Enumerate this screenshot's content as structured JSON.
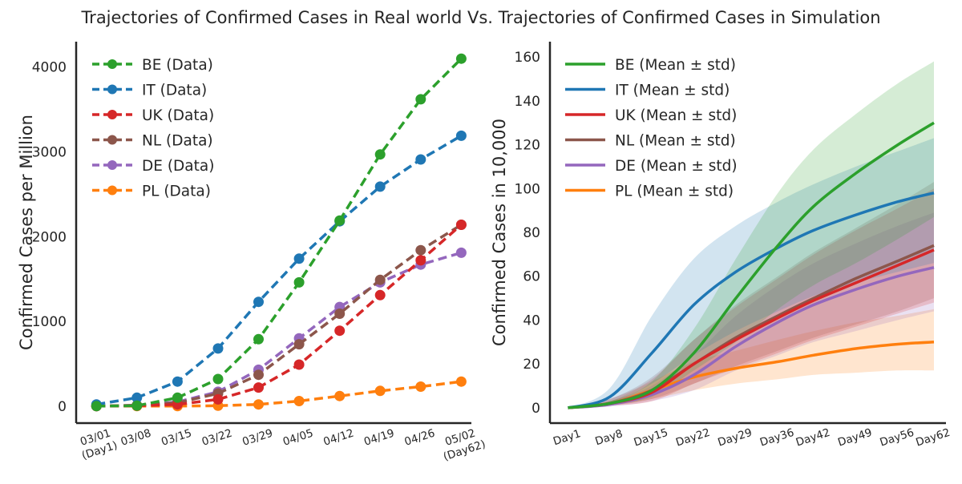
{
  "title": "Trajectories of Confirmed Cases in Real world  Vs. Trajectories of Confirmed Cases in Simulation",
  "colors": {
    "BE": "#2ca02c",
    "IT": "#1f77b4",
    "UK": "#d62728",
    "NL": "#8c564b",
    "DE": "#9467bd",
    "PL": "#ff7f0e"
  },
  "chart_data": [
    {
      "type": "line",
      "ylabel": "Confirmed Cases per Million",
      "xlabel": "",
      "ylim": [
        -200,
        4300
      ],
      "xlim": [
        -0.5,
        9.25
      ],
      "x_ticks": [
        {
          "label": "03/01\n(Day1)",
          "x": 0
        },
        {
          "label": "03/08",
          "x": 1
        },
        {
          "label": "03/15",
          "x": 2
        },
        {
          "label": "03/22",
          "x": 3
        },
        {
          "label": "03/29",
          "x": 4
        },
        {
          "label": "04/05",
          "x": 5
        },
        {
          "label": "04/12",
          "x": 6
        },
        {
          "label": "04/19",
          "x": 7
        },
        {
          "label": "04/26",
          "x": 8
        },
        {
          "label": "05/02\n(Day62)",
          "x": 9
        }
      ],
      "y_ticks": [
        0,
        1000,
        2000,
        3000,
        4000
      ],
      "categories": [
        "03/01",
        "03/08",
        "03/15",
        "03/22",
        "03/29",
        "04/05",
        "04/12",
        "04/19",
        "04/26",
        "05/02"
      ],
      "legend": "upper left",
      "series": [
        {
          "name": "BE (Data)",
          "key": "BE",
          "values": [
            0,
            5,
            100,
            320,
            790,
            1460,
            2190,
            2970,
            3620,
            4100
          ]
        },
        {
          "name": "IT (Data)",
          "key": "IT",
          "values": [
            20,
            100,
            290,
            680,
            1230,
            1740,
            2180,
            2590,
            2910,
            3190
          ]
        },
        {
          "name": "UK (Data)",
          "key": "UK",
          "values": [
            0,
            5,
            20,
            80,
            220,
            490,
            890,
            1310,
            1720,
            2140
          ]
        },
        {
          "name": "NL (Data)",
          "key": "NL",
          "values": [
            0,
            10,
            40,
            150,
            370,
            730,
            1090,
            1490,
            1840,
            2140
          ]
        },
        {
          "name": "DE (Data)",
          "key": "DE",
          "values": [
            0,
            10,
            50,
            170,
            430,
            800,
            1170,
            1460,
            1670,
            1810
          ]
        },
        {
          "name": "PL (Data)",
          "key": "PL",
          "values": [
            0,
            0,
            0,
            5,
            20,
            60,
            120,
            180,
            230,
            290
          ]
        }
      ]
    },
    {
      "type": "area",
      "ylabel": "Confirmed Cases in 10,000",
      "xlabel": "",
      "ylim": [
        -7,
        167
      ],
      "xlim": [
        -2,
        64
      ],
      "x_ticks": [
        {
          "label": "Day1",
          "x": 1
        },
        {
          "label": "Day8",
          "x": 8
        },
        {
          "label": "Day15",
          "x": 15
        },
        {
          "label": "Day22",
          "x": 22
        },
        {
          "label": "Day29",
          "x": 29
        },
        {
          "label": "Day36",
          "x": 36
        },
        {
          "label": "Day42",
          "x": 42
        },
        {
          "label": "Day49",
          "x": 49
        },
        {
          "label": "Day56",
          "x": 56
        },
        {
          "label": "Day62",
          "x": 62
        }
      ],
      "y_ticks": [
        0,
        20,
        40,
        60,
        80,
        100,
        120,
        140,
        160
      ],
      "x": [
        1,
        8,
        15,
        22,
        29,
        36,
        42,
        49,
        56,
        62
      ],
      "legend": "upper left",
      "series": [
        {
          "name": "BE (Mean ± std)",
          "key": "BE",
          "mean": [
            0,
            2,
            8,
            25,
            50,
            74,
            92,
            107,
            120,
            130
          ],
          "lower": [
            0,
            1.5,
            5,
            17,
            30,
            45,
            56,
            66,
            77,
            87
          ],
          "upper": [
            0,
            3,
            12,
            36,
            68,
            98,
            118,
            134,
            148,
            158
          ]
        },
        {
          "name": "IT (Mean ± std)",
          "key": "IT",
          "mean": [
            0,
            5,
            25,
            47,
            62,
            73,
            81,
            88,
            94,
            98
          ],
          "lower": [
            0,
            2,
            11,
            24,
            35,
            44,
            51,
            57,
            62,
            66
          ],
          "upper": [
            0,
            9,
            42,
            68,
            83,
            94,
            102,
            110,
            117,
            123
          ]
        },
        {
          "name": "UK (Mean ± std)",
          "key": "UK",
          "mean": [
            0,
            2,
            7,
            20,
            31,
            41,
            49,
            57,
            65,
            72
          ],
          "lower": [
            0,
            1,
            3,
            11,
            18,
            25,
            31,
            37,
            43,
            48
          ],
          "upper": [
            0,
            4,
            13,
            31,
            46,
            59,
            70,
            81,
            91,
            100
          ]
        },
        {
          "name": "NL (Mean ± std)",
          "key": "NL",
          "mean": [
            0,
            2,
            8,
            20,
            32,
            42,
            50,
            59,
            67,
            74
          ],
          "lower": [
            0,
            1,
            4,
            11,
            19,
            26,
            32,
            38,
            44,
            50
          ],
          "upper": [
            0,
            4,
            14,
            31,
            47,
            60,
            71,
            82,
            93,
            103
          ]
        },
        {
          "name": "DE (Mean ± std)",
          "key": "DE",
          "mean": [
            0,
            1.5,
            6,
            15,
            28,
            39,
            47,
            54,
            60,
            64
          ],
          "lower": [
            0,
            0.5,
            3,
            8,
            17,
            24,
            30,
            35,
            40,
            44
          ],
          "upper": [
            0,
            3,
            10,
            24,
            42,
            56,
            66,
            75,
            83,
            89
          ]
        },
        {
          "name": "PL (Mean ± std)",
          "key": "PL",
          "mean": [
            0,
            2,
            8,
            14,
            18,
            21,
            24,
            27,
            29,
            30
          ],
          "lower": [
            0,
            1,
            4,
            8,
            11,
            13,
            15,
            16,
            17,
            17
          ],
          "upper": [
            0,
            3,
            12,
            21,
            26,
            31,
            35,
            39,
            42,
            45
          ]
        }
      ]
    }
  ]
}
